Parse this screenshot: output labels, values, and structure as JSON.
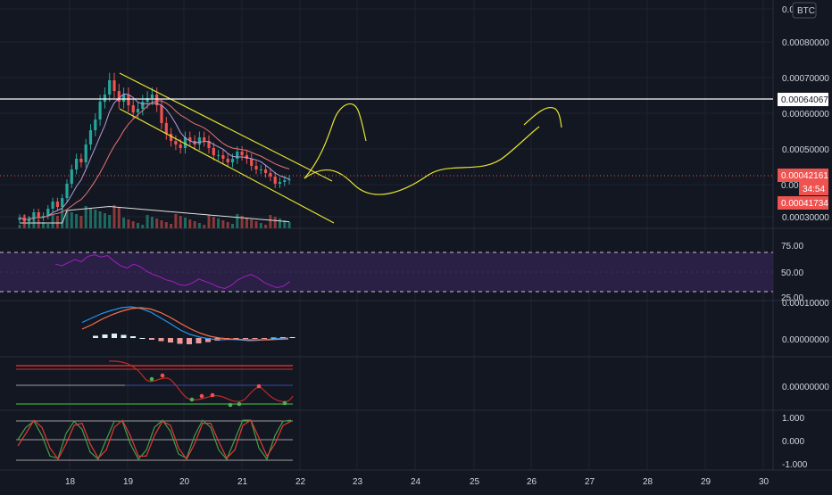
{
  "colors": {
    "background": "#131722",
    "grid": "#1f2330",
    "candle_up": "#26a69a",
    "candle_down": "#ef5350",
    "volume_up": "#1e6b62",
    "volume_down": "#8a3a3a",
    "ma_fast": "#b39ddb",
    "ma_slow": "#e57373",
    "ma_volume": "#e0e0e0",
    "channel": "#e5e530",
    "drawing": "#e5e530",
    "resistance": "#ffffff",
    "price_line": "#ef5350",
    "rsi_line": "#a020c0",
    "rsi_band": "#2a1f45",
    "rsi_bound": "#c8c0e0",
    "macd_line": "#2196f3",
    "signal_line": "#ff7043",
    "hist_up": "#e0f2f1",
    "hist_down": "#ef9a9a",
    "ind3_top": "#d32f2f",
    "ind3_bottom": "#388e3c",
    "ind3_mid": "#3949ab",
    "ind3_curve": "#c62828",
    "dot_green": "#4caf50",
    "dot_red": "#ef5350",
    "osc_green": "#43a047",
    "osc_red": "#e53935",
    "label_bg_red": "#ef5350",
    "label_bg_white": "#ffffff"
  },
  "price_pane": {
    "currency": "BTC",
    "y_ticks": [
      "0.0",
      "0.00080000",
      "0.00070000",
      "0.00060000",
      "0.00050000",
      "0.00040000",
      "0.00030000"
    ],
    "resistance_label": "0.00064067",
    "last_price_label": "0.00042161",
    "countdown_label": "34:54",
    "low_label": "0.00041734"
  },
  "rsi_pane": {
    "y_ticks": [
      "75.00",
      "50.00",
      "25.00"
    ]
  },
  "macd_pane": {
    "y_ticks": [
      "0.00000000"
    ],
    "clipped_tick": "0.00010000"
  },
  "ind3_pane": {
    "y_ticks": [
      "0.00000000"
    ]
  },
  "osc_pane": {
    "y_ticks": [
      "1.000",
      "0.000",
      "-1.000"
    ]
  },
  "time_axis": {
    "labels": [
      "18",
      "19",
      "20",
      "21",
      "22",
      "23",
      "24",
      "25",
      "26",
      "27",
      "28",
      "29",
      "30"
    ]
  },
  "chart_data": {
    "type": "candlestick",
    "price": {
      "ylim": [
        0.00026,
        0.0009
      ],
      "closes": [
        0.000315,
        0.000305,
        0.00031,
        0.00033,
        0.000315,
        0.00032,
        0.00034,
        0.00036,
        0.000345,
        0.00037,
        0.00041,
        0.00045,
        0.00048,
        0.00047,
        0.00052,
        0.00056,
        0.00059,
        0.00064,
        0.00066,
        0.0007,
        0.00067,
        0.00064,
        0.00066,
        0.00063,
        0.00061,
        0.00062,
        0.00064,
        0.00065,
        0.00066,
        0.00063,
        0.00058,
        0.00055,
        0.00053,
        0.00052,
        0.00051,
        0.00054,
        0.00053,
        0.00052,
        0.00054,
        0.00053,
        0.00051,
        0.00049,
        0.00049,
        0.00048,
        0.00047,
        0.00048,
        0.0005,
        0.00049,
        0.00048,
        0.00046,
        0.00045,
        0.00045,
        0.00044,
        0.00043,
        0.00041,
        0.000415,
        0.00042,
        0.000422
      ],
      "resistance": 0.00064067,
      "last": 0.00042161,
      "low_marker": 0.00041734
    },
    "rsi": {
      "ylim": [
        0,
        100
      ],
      "upper": 75,
      "lower": 25,
      "values": [
        60,
        58,
        62,
        66,
        63,
        70,
        72,
        69,
        71,
        64,
        58,
        55,
        60,
        57,
        51,
        47,
        44,
        40,
        38,
        34,
        33,
        36,
        41,
        38,
        35,
        31,
        29,
        33,
        40,
        44,
        47,
        43,
        37,
        33,
        30,
        32,
        38
      ]
    },
    "macd": {
      "macd": [
        0.35,
        0.45,
        0.55,
        0.62,
        0.68,
        0.7,
        0.66,
        0.58,
        0.45,
        0.32,
        0.18,
        0.08,
        0.02,
        -0.02,
        -0.04,
        -0.03,
        -0.04,
        -0.06,
        -0.05,
        -0.03,
        -0.01,
        0.0
      ],
      "signal": [
        0.2,
        0.3,
        0.42,
        0.52,
        0.6,
        0.66,
        0.68,
        0.65,
        0.57,
        0.46,
        0.33,
        0.21,
        0.11,
        0.04,
        0.0,
        -0.02,
        -0.03,
        -0.04,
        -0.04,
        -0.04,
        -0.03,
        -0.02
      ],
      "hist": [
        0.05,
        0.08,
        0.1,
        0.07,
        0.04,
        0.0,
        -0.04,
        -0.07,
        -0.1,
        -0.13,
        -0.14,
        -0.12,
        -0.09,
        -0.06,
        -0.04,
        -0.01,
        -0.01,
        -0.02,
        -0.01,
        0.01,
        0.02,
        0.02
      ]
    },
    "oscillator": {
      "green": [
        0.0,
        0.6,
        0.9,
        0.2,
        -0.8,
        -0.9,
        0.3,
        0.9,
        0.5,
        -0.6,
        -0.95,
        0.0,
        0.9,
        0.9,
        -0.2,
        -0.95,
        -0.5,
        0.6,
        0.95,
        0.4,
        -0.7,
        -0.9,
        0.2,
        0.95,
        0.6,
        -0.5,
        -0.95,
        0.0,
        0.95,
        0.95,
        -0.4,
        -0.95,
        0.2,
        0.9,
        0.95
      ],
      "red": [
        -0.3,
        0.3,
        0.95,
        0.6,
        -0.4,
        -0.95,
        -0.2,
        0.7,
        0.8,
        -0.2,
        -0.9,
        -0.5,
        0.6,
        0.95,
        0.2,
        -0.8,
        -0.8,
        0.2,
        0.9,
        0.7,
        -0.4,
        -0.95,
        -0.2,
        0.8,
        0.8,
        -0.1,
        -0.9,
        -0.5,
        0.7,
        0.95,
        0.1,
        -0.8,
        -0.2,
        0.7,
        0.9
      ],
      "ylim": [
        -1.2,
        1.2
      ]
    }
  }
}
